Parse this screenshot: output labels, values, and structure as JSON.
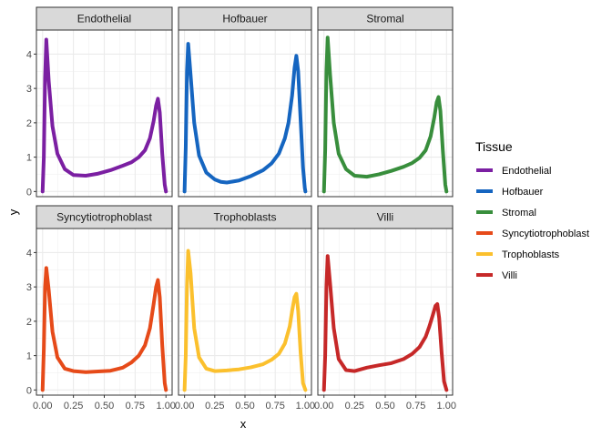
{
  "chart_data": {
    "type": "line",
    "facet_by": "Tissue",
    "xlabel": "x",
    "ylabel": "y",
    "xlim": [
      -0.05,
      1.05
    ],
    "ylim": [
      -0.15,
      4.7
    ],
    "x_ticks": [
      "0.00",
      "0.25",
      "0.50",
      "0.75",
      "1.00"
    ],
    "x_tick_values": [
      0,
      0.25,
      0.5,
      0.75,
      1
    ],
    "y_ticks": [
      "0",
      "1",
      "2",
      "3",
      "4"
    ],
    "y_tick_values": [
      0,
      1,
      2,
      3,
      4
    ],
    "grid": true,
    "legend": {
      "title": "Tissue",
      "position": "right"
    },
    "series": [
      {
        "name": "Endothelial",
        "color": "#7B1FA2",
        "x": [
          0.0,
          0.01,
          0.02,
          0.03,
          0.05,
          0.08,
          0.12,
          0.18,
          0.25,
          0.35,
          0.45,
          0.55,
          0.65,
          0.72,
          0.78,
          0.83,
          0.87,
          0.9,
          0.92,
          0.935,
          0.95,
          0.97,
          0.99,
          1.0
        ],
        "y": [
          0.0,
          1.0,
          3.3,
          4.42,
          3.2,
          1.9,
          1.1,
          0.65,
          0.48,
          0.46,
          0.52,
          0.62,
          0.75,
          0.85,
          1.0,
          1.2,
          1.55,
          2.05,
          2.5,
          2.7,
          2.3,
          1.1,
          0.2,
          0.0
        ]
      },
      {
        "name": "Hofbauer",
        "color": "#1565C0",
        "x": [
          0.0,
          0.01,
          0.02,
          0.03,
          0.05,
          0.08,
          0.12,
          0.18,
          0.25,
          0.3,
          0.35,
          0.45,
          0.55,
          0.65,
          0.72,
          0.78,
          0.83,
          0.86,
          0.89,
          0.91,
          0.925,
          0.94,
          0.96,
          0.98,
          0.995,
          1.0
        ],
        "y": [
          0.0,
          1.3,
          3.5,
          4.3,
          3.4,
          2.0,
          1.05,
          0.55,
          0.35,
          0.28,
          0.26,
          0.32,
          0.45,
          0.62,
          0.82,
          1.1,
          1.55,
          2.0,
          2.8,
          3.6,
          3.95,
          3.5,
          2.1,
          0.7,
          0.1,
          0.0
        ]
      },
      {
        "name": "Stromal",
        "color": "#388E3C",
        "x": [
          0.0,
          0.01,
          0.02,
          0.03,
          0.05,
          0.08,
          0.12,
          0.18,
          0.25,
          0.35,
          0.45,
          0.55,
          0.65,
          0.72,
          0.78,
          0.83,
          0.87,
          0.9,
          0.92,
          0.935,
          0.95,
          0.97,
          0.99,
          1.0
        ],
        "y": [
          0.0,
          1.2,
          3.5,
          4.48,
          3.4,
          2.0,
          1.1,
          0.65,
          0.46,
          0.43,
          0.5,
          0.6,
          0.72,
          0.83,
          0.98,
          1.2,
          1.6,
          2.15,
          2.6,
          2.75,
          2.35,
          1.2,
          0.2,
          0.0
        ]
      },
      {
        "name": "Syncytiotrophoblast",
        "color": "#E64A19",
        "x": [
          0.0,
          0.01,
          0.02,
          0.03,
          0.05,
          0.08,
          0.12,
          0.18,
          0.25,
          0.35,
          0.45,
          0.55,
          0.65,
          0.72,
          0.78,
          0.83,
          0.87,
          0.9,
          0.92,
          0.935,
          0.95,
          0.97,
          0.99,
          1.0
        ],
        "y": [
          0.0,
          1.2,
          3.0,
          3.55,
          2.9,
          1.7,
          0.95,
          0.62,
          0.55,
          0.52,
          0.54,
          0.56,
          0.65,
          0.8,
          1.0,
          1.3,
          1.8,
          2.5,
          3.0,
          3.2,
          2.7,
          1.3,
          0.2,
          0.0
        ]
      },
      {
        "name": "Trophoblasts",
        "color": "#FBC02D",
        "x": [
          0.0,
          0.01,
          0.02,
          0.03,
          0.05,
          0.08,
          0.12,
          0.18,
          0.25,
          0.35,
          0.45,
          0.55,
          0.65,
          0.72,
          0.78,
          0.83,
          0.87,
          0.89,
          0.91,
          0.925,
          0.94,
          0.96,
          0.98,
          1.0
        ],
        "y": [
          0.0,
          1.0,
          3.0,
          4.05,
          3.4,
          1.8,
          0.95,
          0.62,
          0.55,
          0.57,
          0.6,
          0.66,
          0.75,
          0.88,
          1.05,
          1.35,
          1.85,
          2.3,
          2.7,
          2.8,
          2.3,
          1.1,
          0.2,
          0.0
        ]
      },
      {
        "name": "Villi",
        "color": "#C62828",
        "x": [
          0.0,
          0.01,
          0.02,
          0.03,
          0.05,
          0.08,
          0.12,
          0.18,
          0.25,
          0.35,
          0.45,
          0.55,
          0.65,
          0.72,
          0.78,
          0.83,
          0.86,
          0.89,
          0.91,
          0.925,
          0.94,
          0.96,
          0.98,
          1.0
        ],
        "y": [
          0.0,
          1.0,
          3.0,
          3.9,
          3.1,
          1.8,
          0.9,
          0.58,
          0.55,
          0.65,
          0.72,
          0.78,
          0.9,
          1.05,
          1.25,
          1.55,
          1.85,
          2.2,
          2.45,
          2.5,
          2.1,
          1.1,
          0.25,
          0.0
        ]
      }
    ]
  }
}
